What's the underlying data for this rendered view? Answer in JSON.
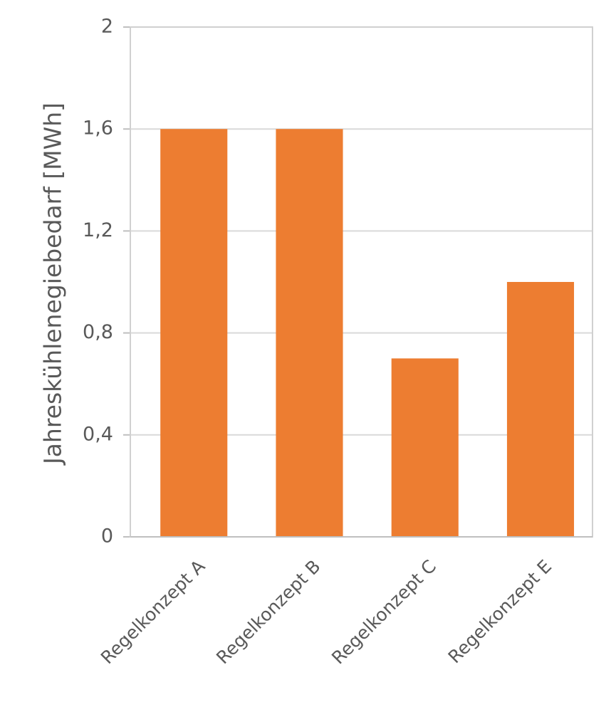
{
  "chart_data": {
    "type": "bar",
    "y_label": "Jahreskühlenegiebedarf  [MWh]",
    "categories": [
      "Regelkonzept A",
      "Regelkonzept B",
      "Regelkonzept C",
      "Regelkonzept E"
    ],
    "values": [
      1.6,
      1.6,
      0.7,
      1.0
    ],
    "color": "#ed7d31",
    "ylim": [
      0,
      2
    ],
    "yticks": [
      0,
      {
        "value": 0.4,
        "label": "0,4"
      },
      {
        "value": 0.8,
        "label": "0,8"
      },
      {
        "value": 1.2,
        "label": "1,2"
      },
      {
        "value": 1.6,
        "label": "1,6"
      },
      2
    ],
    "grid": true
  }
}
